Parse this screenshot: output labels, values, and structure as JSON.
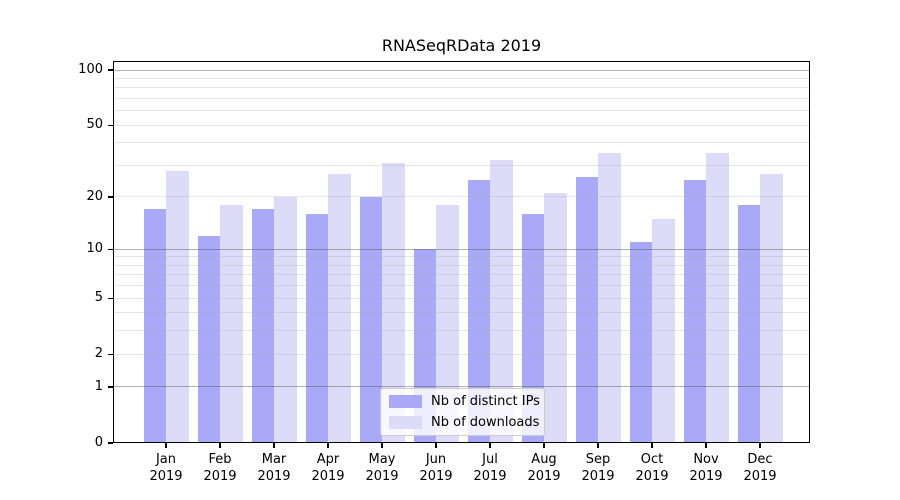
{
  "chart_data": {
    "type": "bar",
    "title": "RNASeqRData 2019",
    "year": "2019",
    "months": [
      "Jan",
      "Feb",
      "Mar",
      "Apr",
      "May",
      "Jun",
      "Jul",
      "Aug",
      "Sep",
      "Oct",
      "Nov",
      "Dec"
    ],
    "categories": [
      "Jan 2019",
      "Feb 2019",
      "Mar 2019",
      "Apr 2019",
      "May 2019",
      "Jun 2019",
      "Jul 2019",
      "Aug 2019",
      "Sep 2019",
      "Oct 2019",
      "Nov 2019",
      "Dec 2019"
    ],
    "series": [
      {
        "name": "Nb of distinct IPs",
        "color": "#a9a9f7",
        "values": [
          17,
          12,
          17,
          16,
          20,
          10,
          25,
          16,
          26,
          11,
          25,
          18
        ]
      },
      {
        "name": "Nb of downloads",
        "color": "#dcdcf9",
        "values": [
          28,
          18,
          20,
          27,
          31,
          18,
          32,
          21,
          35,
          15,
          35,
          27
        ]
      }
    ],
    "xlabel": "",
    "ylabel": "",
    "yscale": "log1p",
    "yticks": [
      0,
      1,
      2,
      5,
      10,
      20,
      50,
      100
    ],
    "ylim": [
      0,
      112
    ],
    "grid": {
      "on": true,
      "major": [
        1,
        10,
        100
      ],
      "minor": [
        2,
        3,
        4,
        5,
        6,
        7,
        8,
        9,
        20,
        30,
        40,
        50,
        60,
        70,
        80,
        90
      ]
    },
    "legend_position": "lower center",
    "colors": {
      "axis": "#000000",
      "major_grid": "#b0b0b0",
      "minor_grid": "#e7e7e7",
      "background": "#ffffff"
    }
  }
}
